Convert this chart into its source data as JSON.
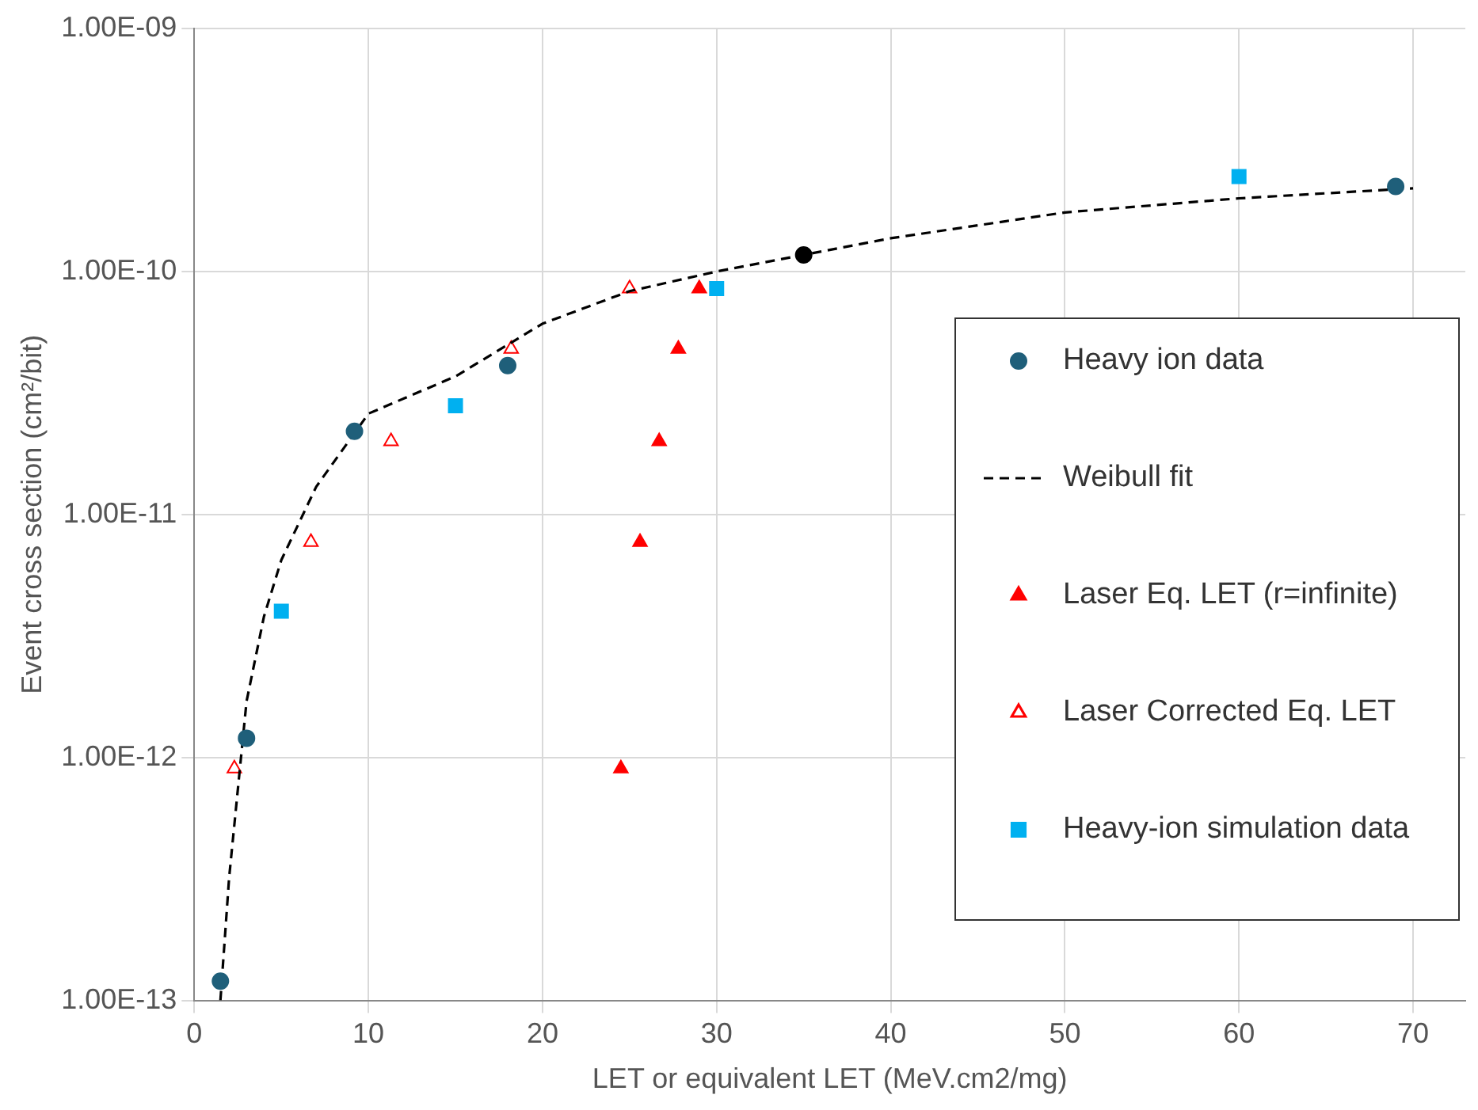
{
  "chart_data": {
    "type": "scatter",
    "xlabel": "LET or equivalent LET (MeV.cm2/mg)",
    "ylabel": "Event cross section (cm²/bit)",
    "log": "y",
    "grid": true,
    "legend": "right",
    "xlim": [
      0,
      73
    ],
    "xticks": [
      0,
      10,
      20,
      30,
      40,
      50,
      60,
      70
    ],
    "ylim": [
      1e-13,
      1e-09
    ],
    "yticks": [
      {
        "value": 1e-13,
        "label": "1.00E-13"
      },
      {
        "value": 1e-12,
        "label": "1.00E-12"
      },
      {
        "value": 1e-11,
        "label": "1.00E-11"
      },
      {
        "value": 1e-10,
        "label": "1.00E-10"
      },
      {
        "value": 1e-09,
        "label": "1.00E-09"
      }
    ],
    "series": [
      {
        "name": "Heavy ion data",
        "type": "scatter",
        "marker": "circle",
        "color": "#1f5f7a",
        "colors": [
          "#1f5f7a",
          "#1f5f7a",
          "#1f5f7a",
          "#1f5f7a",
          "#000000",
          "#1f5f7a"
        ],
        "x": [
          1.5,
          3,
          9.2,
          18,
          35,
          69
        ],
        "values": [
          1.2e-13,
          1.2e-12,
          2.2e-11,
          4.1e-11,
          1.17e-10,
          2.24e-10
        ]
      },
      {
        "name": "Weibull fit",
        "type": "line",
        "marker": "none",
        "line_style": "dashed",
        "color": "#000000",
        "x": [
          1.5,
          2,
          3,
          4,
          5,
          7,
          10,
          15,
          20,
          25,
          30,
          35,
          40,
          50,
          60,
          70
        ],
        "values": [
          1e-13,
          3.2e-13,
          1.7e-12,
          3.8e-12,
          6.5e-12,
          1.3e-11,
          2.6e-11,
          3.7e-11,
          6.1e-11,
          8.3e-11,
          1e-10,
          1.17e-10,
          1.37e-10,
          1.75e-10,
          2e-10,
          2.2e-10
        ]
      },
      {
        "name": "Laser Eq. LET (r=infinite)",
        "type": "scatter",
        "marker": "triangle",
        "color": "#ff0000",
        "x": [
          24.5,
          25.6,
          26.7,
          27.8,
          29
        ],
        "values": [
          9e-13,
          7.7e-12,
          2e-11,
          4.8e-11,
          8.5e-11
        ]
      },
      {
        "name": "Laser Corrected Eq. LET",
        "type": "scatter",
        "marker": "triangle",
        "color": "#ff0000",
        "x": [
          2.3,
          6.7,
          11.3,
          18.2,
          25
        ],
        "values": [
          9e-13,
          7.7e-12,
          2e-11,
          4.8e-11,
          8.5e-11
        ]
      },
      {
        "name": "Heavy-ion simulation data",
        "type": "scatter",
        "marker": "square",
        "color": "#00b0f0",
        "x": [
          5,
          15,
          30,
          60
        ],
        "values": [
          4e-12,
          2.8e-11,
          8.5e-11,
          2.46e-10
        ]
      }
    ]
  }
}
